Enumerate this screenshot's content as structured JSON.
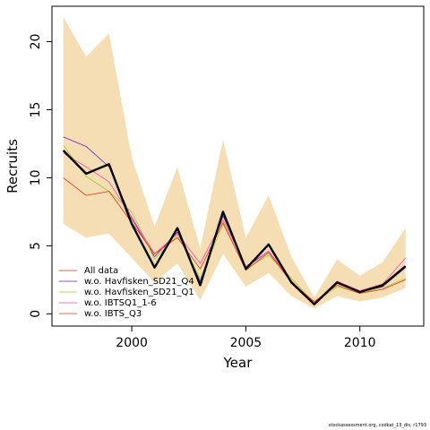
{
  "chart_data": {
    "type": "line",
    "title": "",
    "xlabel": "Year",
    "ylabel": "Recruits",
    "xlim": [
      1996.5,
      2012.8
    ],
    "ylim": [
      -0.9,
      22.6
    ],
    "x_ticks": [
      2000,
      2005,
      2010
    ],
    "y_ticks": [
      0,
      5,
      10,
      15,
      20
    ],
    "x": [
      1997,
      1998,
      1999,
      2000,
      2001,
      2002,
      2003,
      2004,
      2005,
      2006,
      2007,
      2008,
      2009,
      2010,
      2011,
      2012
    ],
    "band": {
      "color": "#f5deb3",
      "lower": [
        6.6,
        5.6,
        5.9,
        4.1,
        2.3,
        3.7,
        1.0,
        4.4,
        2.0,
        3.0,
        1.3,
        0.4,
        1.3,
        0.9,
        1.2,
        1.9
      ],
      "upper": [
        21.8,
        18.9,
        20.6,
        11.5,
        6.4,
        10.8,
        4.8,
        12.8,
        5.6,
        8.7,
        4.2,
        1.2,
        4.0,
        2.8,
        3.8,
        6.3
      ]
    },
    "series": [
      {
        "name": "",
        "color": "#000000",
        "width": 2.4,
        "legend": false,
        "values": [
          12.0,
          10.3,
          11.0,
          6.6,
          3.4,
          6.3,
          2.1,
          7.5,
          3.3,
          5.1,
          2.3,
          0.7,
          2.3,
          1.6,
          2.1,
          3.5
        ]
      },
      {
        "name": "All data",
        "color": "#d92b2b",
        "width": 0.8,
        "legend": true,
        "values": [
          12.0,
          10.3,
          11.0,
          6.6,
          3.4,
          6.3,
          2.1,
          7.5,
          3.3,
          5.1,
          2.3,
          0.7,
          2.3,
          1.6,
          2.1,
          3.5
        ]
      },
      {
        "name": "w.o. Havfisken_SD21_Q4",
        "color": "#6a1fbf",
        "width": 0.8,
        "legend": true,
        "values": [
          13.0,
          12.3,
          10.8,
          7.0,
          4.2,
          6.0,
          2.4,
          7.2,
          3.4,
          4.6,
          2.4,
          0.8,
          2.3,
          1.6,
          2.0,
          3.4
        ]
      },
      {
        "name": "w.o. Havfisken_SD21_Q1",
        "color": "#9acd32",
        "width": 0.8,
        "legend": true,
        "values": [
          12.4,
          10.1,
          9.0,
          7.5,
          4.0,
          5.8,
          2.6,
          6.6,
          3.3,
          4.3,
          2.6,
          0.8,
          2.0,
          1.5,
          1.9,
          2.6
        ]
      },
      {
        "name": "w.o. IBTSQ1_1-6",
        "color": "#ff4da6",
        "width": 0.8,
        "legend": true,
        "values": [
          11.8,
          10.8,
          9.7,
          7.1,
          4.4,
          5.9,
          3.7,
          6.9,
          3.5,
          4.6,
          2.4,
          0.8,
          2.4,
          1.7,
          2.2,
          4.1
        ]
      },
      {
        "name": "w.o. IBTS_Q3",
        "color": "#e8301a",
        "width": 0.8,
        "legend": true,
        "values": [
          10.0,
          8.7,
          9.0,
          6.7,
          4.4,
          5.6,
          3.3,
          6.7,
          3.2,
          4.5,
          2.3,
          0.9,
          2.1,
          1.5,
          1.8,
          2.5
        ]
      }
    ],
    "legend_position": "bottom-left",
    "grid": false
  },
  "footer": "stockassessment.org, codkat_13_dis, r1793"
}
